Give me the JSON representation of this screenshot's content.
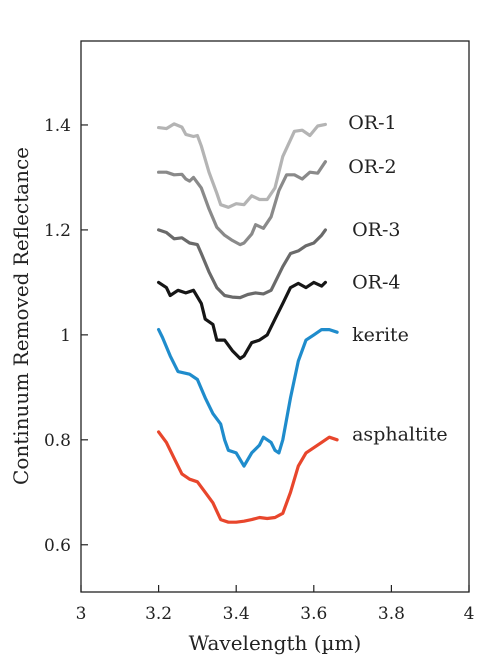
{
  "chart_data": {
    "type": "line",
    "xlabel": "Wavelength (µm)",
    "ylabel": "Continuum  Removed Reflectance",
    "xlim": [
      3.0,
      4.0
    ],
    "ylim": [
      0.51,
      1.56
    ],
    "x_ticks": [
      3,
      3.2,
      3.4,
      3.6,
      3.8,
      4
    ],
    "x_tick_labels": [
      "3",
      "3.2",
      "3.4",
      "3.6",
      "3.8",
      "4"
    ],
    "y_ticks": [
      0.6,
      0.8,
      1.0,
      1.2,
      1.4
    ],
    "y_tick_labels": [
      "0.6",
      "0.8",
      "1",
      "1.2",
      "1.4"
    ],
    "grid": false,
    "legend": "labels placed to the right of each curve",
    "series": [
      {
        "name": "OR-1",
        "color": "#b4b4b4",
        "label_at": [
          3.48,
          1.404
        ],
        "points": [
          [
            3.2,
            1.395
          ],
          [
            3.22,
            1.393
          ],
          [
            3.24,
            1.402
          ],
          [
            3.26,
            1.396
          ],
          [
            3.27,
            1.382
          ],
          [
            3.29,
            1.378
          ],
          [
            3.3,
            1.38
          ],
          [
            3.31,
            1.36
          ],
          [
            3.33,
            1.31
          ],
          [
            3.35,
            1.27
          ],
          [
            3.36,
            1.248
          ],
          [
            3.38,
            1.243
          ],
          [
            3.4,
            1.25
          ],
          [
            3.42,
            1.248
          ],
          [
            3.44,
            1.265
          ],
          [
            3.46,
            1.258
          ],
          [
            3.48,
            1.258
          ],
          [
            3.5,
            1.28
          ],
          [
            3.52,
            1.34
          ],
          [
            3.55,
            1.388
          ],
          [
            3.57,
            1.39
          ],
          [
            3.59,
            1.38
          ],
          [
            3.61,
            1.398
          ],
          [
            3.63,
            1.401
          ]
        ]
      },
      {
        "name": "OR-2",
        "color": "#8a8a8a",
        "label_at": [
          3.48,
          1.32
        ],
        "points": [
          [
            3.2,
            1.31
          ],
          [
            3.22,
            1.31
          ],
          [
            3.24,
            1.305
          ],
          [
            3.26,
            1.306
          ],
          [
            3.27,
            1.297
          ],
          [
            3.28,
            1.293
          ],
          [
            3.29,
            1.3
          ],
          [
            3.31,
            1.28
          ],
          [
            3.33,
            1.24
          ],
          [
            3.35,
            1.205
          ],
          [
            3.37,
            1.19
          ],
          [
            3.39,
            1.18
          ],
          [
            3.41,
            1.172
          ],
          [
            3.42,
            1.175
          ],
          [
            3.44,
            1.192
          ],
          [
            3.45,
            1.21
          ],
          [
            3.47,
            1.203
          ],
          [
            3.49,
            1.225
          ],
          [
            3.51,
            1.275
          ],
          [
            3.53,
            1.305
          ],
          [
            3.55,
            1.305
          ],
          [
            3.57,
            1.297
          ],
          [
            3.59,
            1.31
          ],
          [
            3.61,
            1.308
          ],
          [
            3.63,
            1.33
          ]
        ]
      },
      {
        "name": "OR-3",
        "color": "#6a6a6a",
        "label_at": [
          3.49,
          1.2
        ],
        "points": [
          [
            3.2,
            1.2
          ],
          [
            3.22,
            1.195
          ],
          [
            3.24,
            1.183
          ],
          [
            3.26,
            1.185
          ],
          [
            3.28,
            1.175
          ],
          [
            3.3,
            1.172
          ],
          [
            3.31,
            1.155
          ],
          [
            3.33,
            1.12
          ],
          [
            3.35,
            1.09
          ],
          [
            3.37,
            1.075
          ],
          [
            3.39,
            1.072
          ],
          [
            3.41,
            1.071
          ],
          [
            3.43,
            1.077
          ],
          [
            3.45,
            1.08
          ],
          [
            3.47,
            1.078
          ],
          [
            3.49,
            1.085
          ],
          [
            3.5,
            1.1
          ],
          [
            3.52,
            1.13
          ],
          [
            3.54,
            1.155
          ],
          [
            3.56,
            1.16
          ],
          [
            3.58,
            1.17
          ],
          [
            3.6,
            1.175
          ],
          [
            3.62,
            1.19
          ],
          [
            3.63,
            1.2
          ]
        ]
      },
      {
        "name": "OR-4",
        "color": "#161616",
        "label_at": [
          3.49,
          1.1
        ],
        "points": [
          [
            3.2,
            1.1
          ],
          [
            3.22,
            1.09
          ],
          [
            3.23,
            1.075
          ],
          [
            3.25,
            1.085
          ],
          [
            3.27,
            1.08
          ],
          [
            3.29,
            1.085
          ],
          [
            3.31,
            1.06
          ],
          [
            3.32,
            1.03
          ],
          [
            3.34,
            1.02
          ],
          [
            3.35,
            0.99
          ],
          [
            3.37,
            0.99
          ],
          [
            3.39,
            0.97
          ],
          [
            3.41,
            0.955
          ],
          [
            3.42,
            0.96
          ],
          [
            3.44,
            0.985
          ],
          [
            3.46,
            0.99
          ],
          [
            3.48,
            1.0
          ],
          [
            3.5,
            1.03
          ],
          [
            3.52,
            1.06
          ],
          [
            3.54,
            1.09
          ],
          [
            3.56,
            1.098
          ],
          [
            3.58,
            1.09
          ],
          [
            3.6,
            1.1
          ],
          [
            3.62,
            1.093
          ],
          [
            3.63,
            1.1
          ]
        ]
      },
      {
        "name": "kerite",
        "color": "#1f8ccc",
        "label_at": [
          3.49,
          1.0
        ],
        "points": [
          [
            3.2,
            1.01
          ],
          [
            3.21,
            0.995
          ],
          [
            3.23,
            0.96
          ],
          [
            3.25,
            0.93
          ],
          [
            3.28,
            0.925
          ],
          [
            3.3,
            0.915
          ],
          [
            3.32,
            0.88
          ],
          [
            3.34,
            0.85
          ],
          [
            3.36,
            0.83
          ],
          [
            3.37,
            0.8
          ],
          [
            3.38,
            0.78
          ],
          [
            3.4,
            0.775
          ],
          [
            3.42,
            0.75
          ],
          [
            3.44,
            0.775
          ],
          [
            3.46,
            0.79
          ],
          [
            3.47,
            0.805
          ],
          [
            3.49,
            0.795
          ],
          [
            3.5,
            0.78
          ],
          [
            3.51,
            0.775
          ],
          [
            3.52,
            0.8
          ],
          [
            3.54,
            0.88
          ],
          [
            3.56,
            0.95
          ],
          [
            3.58,
            0.99
          ],
          [
            3.6,
            1.0
          ],
          [
            3.62,
            1.01
          ],
          [
            3.64,
            1.01
          ],
          [
            3.66,
            1.005
          ]
        ]
      },
      {
        "name": "asphaltite",
        "color": "#e8462c",
        "label_at": [
          3.49,
          0.81
        ],
        "points": [
          [
            3.2,
            0.815
          ],
          [
            3.22,
            0.795
          ],
          [
            3.24,
            0.765
          ],
          [
            3.26,
            0.735
          ],
          [
            3.28,
            0.725
          ],
          [
            3.3,
            0.72
          ],
          [
            3.32,
            0.7
          ],
          [
            3.34,
            0.68
          ],
          [
            3.36,
            0.648
          ],
          [
            3.38,
            0.643
          ],
          [
            3.4,
            0.643
          ],
          [
            3.42,
            0.645
          ],
          [
            3.44,
            0.648
          ],
          [
            3.46,
            0.652
          ],
          [
            3.48,
            0.65
          ],
          [
            3.5,
            0.652
          ],
          [
            3.52,
            0.66
          ],
          [
            3.54,
            0.7
          ],
          [
            3.56,
            0.75
          ],
          [
            3.58,
            0.775
          ],
          [
            3.6,
            0.785
          ],
          [
            3.62,
            0.795
          ],
          [
            3.64,
            0.805
          ],
          [
            3.66,
            0.8
          ]
        ]
      }
    ]
  }
}
